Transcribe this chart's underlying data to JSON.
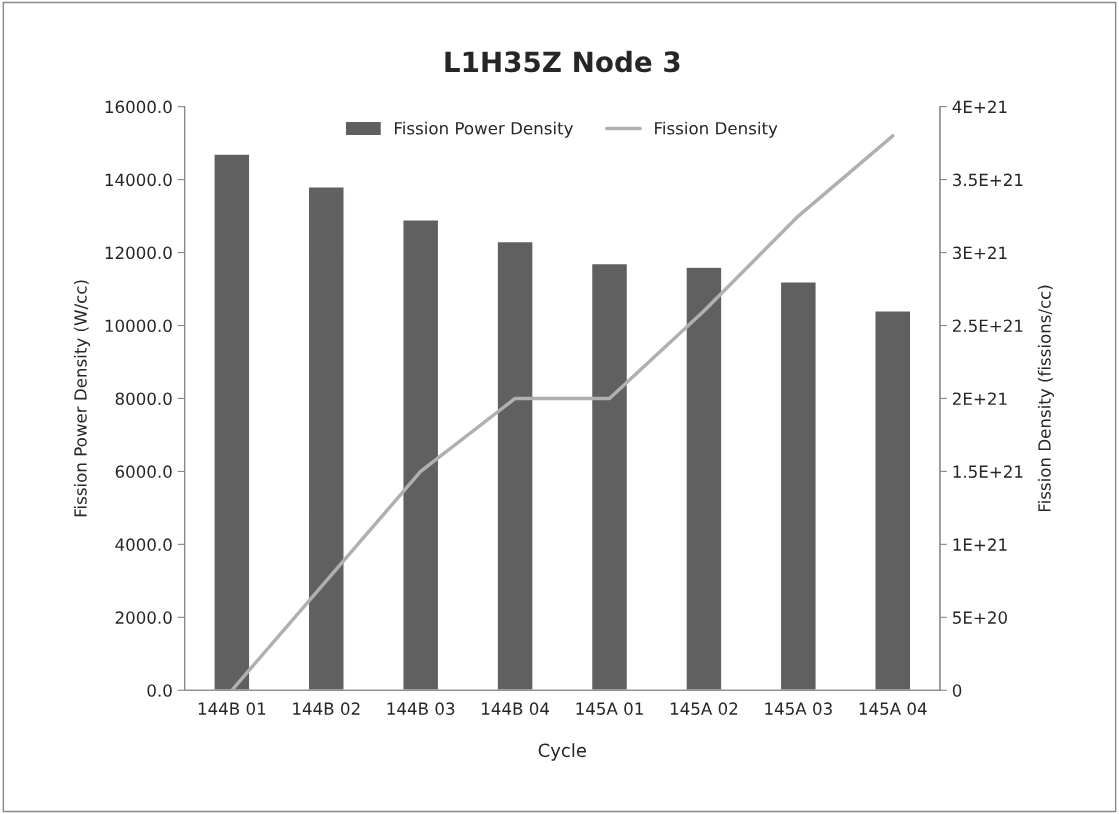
{
  "chart_data": {
    "type": "bar",
    "title": "L1H35Z Node 3",
    "xlabel": "Cycle",
    "ylabel": "Fission Power Density (W/cc)",
    "y2label": "Fission Density (fissions/cc)",
    "categories": [
      "144B 01",
      "144B 02",
      "144B 03",
      "144B 04",
      "145A 01",
      "145A 02",
      "145A 03",
      "145A 04"
    ],
    "series": [
      {
        "name": "Fission Power Density",
        "color": "#606060",
        "values": [
          14700,
          13800,
          12900,
          12300,
          11700,
          11600,
          11200,
          10400
        ]
      },
      {
        "name": "Fission Density",
        "type": "line",
        "axis": "y2",
        "color": "#b0b0b0",
        "values": [
          0,
          7.5e+20,
          1.5e+21,
          2e+21,
          2e+21,
          2.6e+21,
          3.25e+21,
          3.8e+21
        ]
      }
    ],
    "ylim": [
      0,
      16000
    ],
    "yticks": [
      {
        "value": 0,
        "label": "0.0"
      },
      {
        "value": 2000,
        "label": "2000.0"
      },
      {
        "value": 4000,
        "label": "4000.0"
      },
      {
        "value": 6000,
        "label": "6000.0"
      },
      {
        "value": 8000,
        "label": "8000.0"
      },
      {
        "value": 10000,
        "label": "10000.0"
      },
      {
        "value": 12000,
        "label": "12000.0"
      },
      {
        "value": 14000,
        "label": "14000.0"
      },
      {
        "value": 16000,
        "label": "16000.0"
      }
    ],
    "y2lim": [
      0,
      4e+21
    ],
    "y2ticks": [
      {
        "value": 0,
        "label": "0"
      },
      {
        "value": 5e+20,
        "label": "5E+20"
      },
      {
        "value": 1e+21,
        "label": "1E+21"
      },
      {
        "value": 1.5e+21,
        "label": "1.5E+21"
      },
      {
        "value": 2e+21,
        "label": "2E+21"
      },
      {
        "value": 2.5e+21,
        "label": "2.5E+21"
      },
      {
        "value": 3e+21,
        "label": "3E+21"
      },
      {
        "value": 3.5e+21,
        "label": "3.5E+21"
      },
      {
        "value": 4e+21,
        "label": "4E+21"
      }
    ],
    "legend": "top",
    "grid": false,
    "marker": "none",
    "line_style": "solid"
  }
}
